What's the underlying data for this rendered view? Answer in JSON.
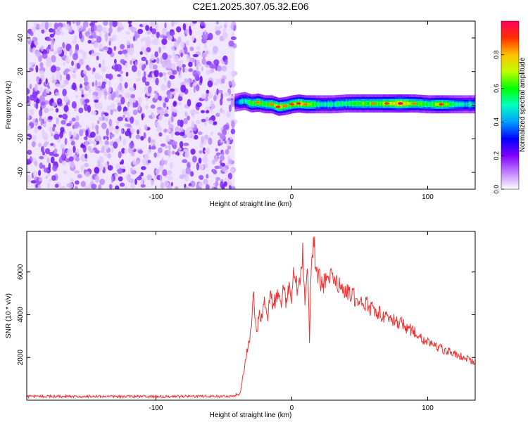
{
  "figure": {
    "title": "C2E1.2025.307.05.32.E06"
  },
  "colors": {
    "axis": "#000000",
    "snr_line": "#ee3333",
    "background": "#ffffff"
  },
  "chart_data": [
    {
      "type": "heatmap",
      "name": "spectrogram",
      "title": "",
      "xlabel": "Height of straight line (km)",
      "ylabel": "Frequency (Hz)",
      "xlim": [
        -195,
        135
      ],
      "ylim": [
        -50,
        50
      ],
      "xticks": [
        -100,
        0,
        100
      ],
      "xtick_labels": [
        "-100",
        "0",
        "100"
      ],
      "yticks": [
        -40,
        -20,
        0,
        20,
        40
      ],
      "ytick_labels": [
        "-40",
        "-20",
        "0",
        "20",
        "40"
      ],
      "noise_region_x": [
        -195,
        -42
      ],
      "signal_band": {
        "x_start": -42,
        "x_end": 135,
        "center_freq": 0,
        "half_width": 3,
        "ridge_x": [
          -42,
          -35,
          -30,
          -25,
          -20,
          -15,
          -10,
          -5,
          0,
          5,
          10,
          15,
          20,
          30,
          40,
          50,
          60,
          70,
          80,
          90,
          100,
          110,
          120,
          135
        ],
        "ridge_freq": [
          1.5,
          2.5,
          1.0,
          1.5,
          0.5,
          0.5,
          -1.0,
          -0.5,
          0.5,
          1.0,
          0.5,
          0.5,
          0.5,
          0.5,
          1.0,
          1.0,
          1.0,
          1.0,
          1.0,
          1.0,
          0.5,
          0.5,
          0.5,
          0.5
        ],
        "ridge_amplitude": [
          0.25,
          0.45,
          0.55,
          0.6,
          0.55,
          0.6,
          0.7,
          0.6,
          0.65,
          0.7,
          0.6,
          0.55,
          0.45,
          0.45,
          0.5,
          0.55,
          0.6,
          0.65,
          0.75,
          0.6,
          0.5,
          0.65,
          0.45,
          0.4
        ]
      },
      "colorbar": {
        "label": "Normalized spectral amplitude",
        "range": [
          0,
          1
        ],
        "ticks": [
          0.0,
          0.2,
          0.4,
          0.6,
          0.8
        ],
        "tick_labels": [
          "0.0",
          "0.2",
          "0.4",
          "0.6",
          "0.8"
        ],
        "colormap": [
          "#ffffff",
          "#c080ff",
          "#8000ff",
          "#0000ff",
          "#00a0ff",
          "#00ffc0",
          "#00ff00",
          "#c0ff00",
          "#ffc000",
          "#ff3000",
          "#ff0060"
        ]
      }
    },
    {
      "type": "line",
      "name": "snr",
      "title": "",
      "xlabel": "Height of straight line (km)",
      "ylabel": "SNR (10 * v/v)",
      "xlim": [
        -195,
        135
      ],
      "ylim": [
        0,
        7900
      ],
      "xticks": [
        -100,
        0,
        100
      ],
      "xtick_labels": [
        "-100",
        "0",
        "100"
      ],
      "yticks": [
        2000,
        4000,
        6000
      ],
      "ytick_labels": [
        "2000",
        "4000",
        "6000"
      ],
      "series": [
        {
          "name": "SNR",
          "color": "#ee3333",
          "x": [
            -195,
            -150,
            -100,
            -60,
            -45,
            -38,
            -35,
            -32,
            -30,
            -28,
            -26,
            -24,
            -22,
            -20,
            -18,
            -16,
            -14,
            -12,
            -10,
            -8,
            -6,
            -4,
            -2,
            0,
            2,
            4,
            6,
            8,
            10,
            12,
            13,
            14,
            15,
            16,
            18,
            20,
            22,
            25,
            30,
            35,
            40,
            45,
            50,
            55,
            60,
            70,
            80,
            90,
            100,
            110,
            120,
            130,
            135
          ],
          "y": [
            180,
            175,
            170,
            175,
            180,
            300,
            1500,
            2600,
            3400,
            4800,
            3000,
            4200,
            3800,
            4500,
            3700,
            5000,
            4500,
            4700,
            5000,
            4300,
            5600,
            4500,
            5200,
            4800,
            6100,
            5200,
            5800,
            6900,
            4500,
            6400,
            2600,
            5600,
            6300,
            7900,
            6000,
            5900,
            5400,
            5600,
            6100,
            5300,
            5200,
            4900,
            4600,
            4500,
            4200,
            3900,
            3600,
            3200,
            2700,
            2400,
            2200,
            1900,
            1700
          ]
        }
      ]
    }
  ]
}
